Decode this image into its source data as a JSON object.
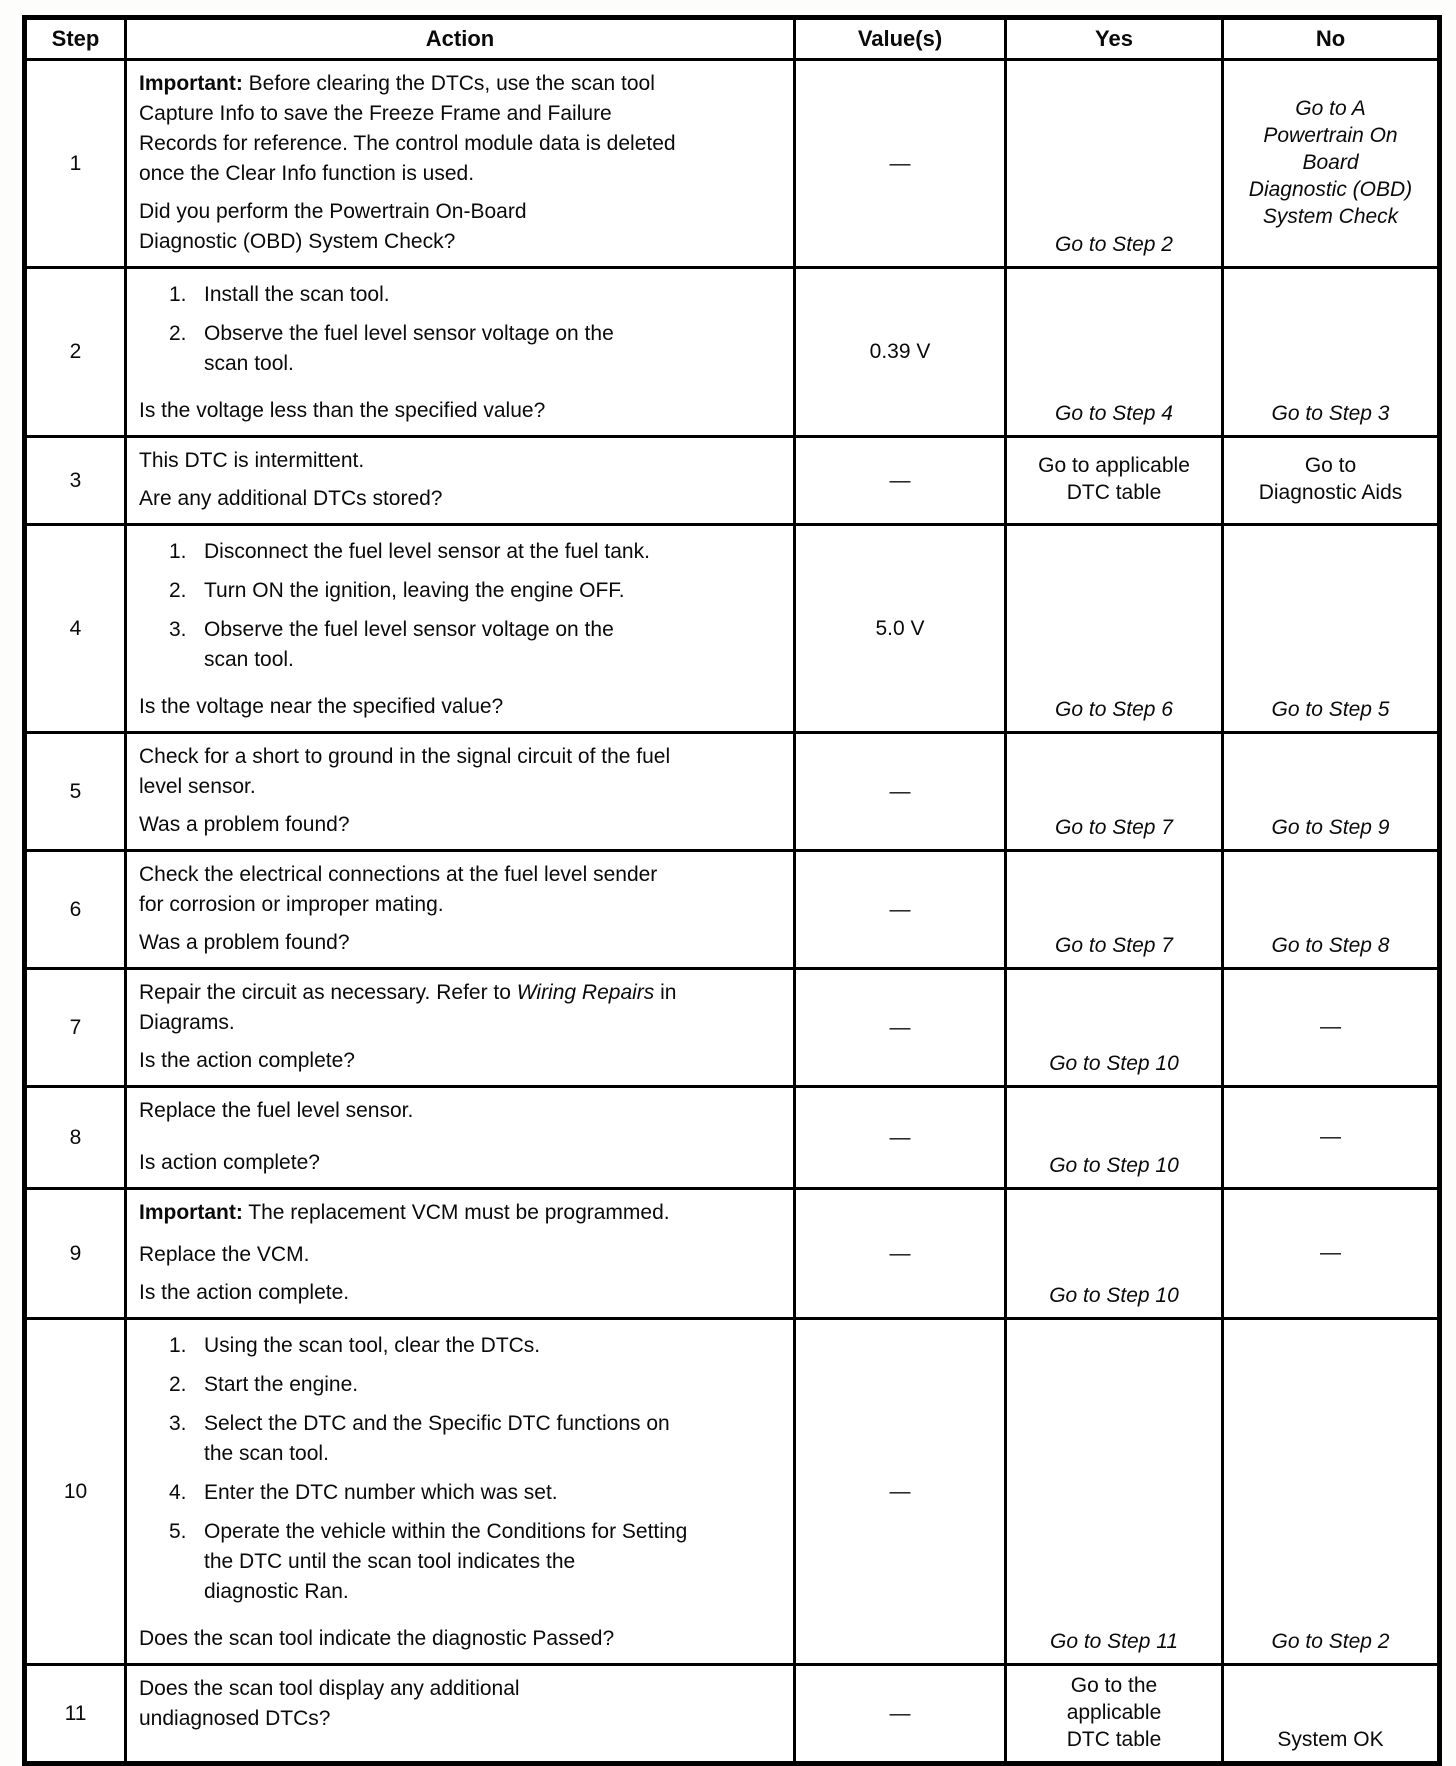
{
  "table": {
    "columns": [
      {
        "key": "step",
        "label": "Step"
      },
      {
        "key": "action",
        "label": "Action"
      },
      {
        "key": "value",
        "label": "Value(s)"
      },
      {
        "key": "yes",
        "label": "Yes"
      },
      {
        "key": "no",
        "label": "No"
      }
    ],
    "rows": [
      {
        "step": "1",
        "action": [
          {
            "kind": "para",
            "runs": [
              {
                "text": "Important:",
                "bold": true
              },
              {
                "text": " Before clearing the DTCs, use the scan tool\nCapture Info to save the Freeze Frame and Failure\nRecords for reference. The control module data is deleted\nonce the Clear Info function is used."
              }
            ]
          },
          {
            "kind": "question",
            "runs": [
              {
                "text": "Did you perform the Powertrain On-Board\nDiagnostic (OBD) System Check?"
              }
            ]
          }
        ],
        "value": "—",
        "yes": {
          "text": "Go to Step 2",
          "italic": true,
          "valign": "bottom"
        },
        "no": {
          "text": "Go to A\nPowertrain On\nBoard\nDiagnostic (OBD)\nSystem Check",
          "italic": true,
          "valign": "center"
        }
      },
      {
        "step": "2",
        "action": [
          {
            "kind": "list",
            "items": [
              {
                "n": "1.",
                "text": "Install the scan tool."
              },
              {
                "n": "2.",
                "text": "Observe the fuel level sensor voltage on the\nscan tool."
              }
            ]
          },
          {
            "kind": "question",
            "runs": [
              {
                "text": "Is the voltage less than the specified value?"
              }
            ]
          }
        ],
        "value": "0.39 V",
        "yes": {
          "text": "Go to Step 4",
          "italic": true,
          "valign": "bottom"
        },
        "no": {
          "text": "Go to Step 3",
          "italic": true,
          "valign": "bottom"
        }
      },
      {
        "step": "3",
        "action": [
          {
            "kind": "para",
            "runs": [
              {
                "text": "This DTC is intermittent."
              }
            ]
          },
          {
            "kind": "question",
            "runs": [
              {
                "text": "Are any additional DTCs stored?"
              }
            ]
          }
        ],
        "value": "—",
        "yes": {
          "text": "Go to applicable\nDTC table",
          "italic": false,
          "valign": "center"
        },
        "no": {
          "text": "Go to\nDiagnostic Aids",
          "italic": false,
          "valign": "center"
        }
      },
      {
        "step": "4",
        "action": [
          {
            "kind": "list",
            "items": [
              {
                "n": "1.",
                "text": "Disconnect the fuel level sensor at the fuel tank."
              },
              {
                "n": "2.",
                "text": "Turn ON the ignition, leaving the engine OFF."
              },
              {
                "n": "3.",
                "text": "Observe the fuel level sensor voltage on the\nscan tool."
              }
            ]
          },
          {
            "kind": "question",
            "runs": [
              {
                "text": "Is the voltage near the specified value?"
              }
            ]
          }
        ],
        "value": "5.0 V",
        "yes": {
          "text": "Go to Step 6",
          "italic": true,
          "valign": "bottom"
        },
        "no": {
          "text": "Go to Step 5",
          "italic": true,
          "valign": "bottom"
        }
      },
      {
        "step": "5",
        "action": [
          {
            "kind": "para",
            "runs": [
              {
                "text": "Check for a short to ground in the signal circuit of the fuel\nlevel sensor."
              }
            ]
          },
          {
            "kind": "question",
            "runs": [
              {
                "text": "Was a problem found?"
              }
            ]
          }
        ],
        "value": "—",
        "yes": {
          "text": "Go to Step 7",
          "italic": true,
          "valign": "bottom"
        },
        "no": {
          "text": "Go to Step 9",
          "italic": true,
          "valign": "bottom"
        }
      },
      {
        "step": "6",
        "action": [
          {
            "kind": "para",
            "runs": [
              {
                "text": "Check the electrical connections at the fuel level sender\nfor corrosion or improper mating."
              }
            ]
          },
          {
            "kind": "question",
            "runs": [
              {
                "text": "Was a problem found?"
              }
            ]
          }
        ],
        "value": "—",
        "yes": {
          "text": "Go to Step 7",
          "italic": true,
          "valign": "bottom"
        },
        "no": {
          "text": "Go to Step 8",
          "italic": true,
          "valign": "bottom"
        }
      },
      {
        "step": "7",
        "action": [
          {
            "kind": "para",
            "runs": [
              {
                "text": "Repair the circuit as necessary. Refer to "
              },
              {
                "text": "Wiring Repairs",
                "italic": true
              },
              {
                "text": " in\nDiagrams."
              }
            ]
          },
          {
            "kind": "question",
            "runs": [
              {
                "text": "Is the action complete?"
              }
            ]
          }
        ],
        "value": "—",
        "yes": {
          "text": "Go to Step 10",
          "italic": true,
          "valign": "bottom"
        },
        "no": {
          "text": "—",
          "italic": false,
          "valign": "center"
        }
      },
      {
        "step": "8",
        "action": [
          {
            "kind": "para",
            "runs": [
              {
                "text": "Replace the fuel level sensor."
              }
            ]
          },
          {
            "kind": "question",
            "runs": [
              {
                "text": "Is action complete?"
              }
            ]
          }
        ],
        "value": "—",
        "yes": {
          "text": "Go to Step 10",
          "italic": true,
          "valign": "bottom"
        },
        "no": {
          "text": "—",
          "italic": false,
          "valign": "center"
        }
      },
      {
        "step": "9",
        "action": [
          {
            "kind": "para",
            "runs": [
              {
                "text": "Important:",
                "bold": true
              },
              {
                "text": " The replacement VCM must be programmed."
              }
            ]
          },
          {
            "kind": "para",
            "runs": [
              {
                "text": "Replace the VCM."
              }
            ]
          },
          {
            "kind": "question",
            "runs": [
              {
                "text": "Is the action complete."
              }
            ]
          }
        ],
        "value": "—",
        "yes": {
          "text": "Go to Step 10",
          "italic": true,
          "valign": "bottom"
        },
        "no": {
          "text": "—",
          "italic": false,
          "valign": "center"
        }
      },
      {
        "step": "10",
        "action": [
          {
            "kind": "list",
            "items": [
              {
                "n": "1.",
                "text": "Using the scan tool, clear the DTCs."
              },
              {
                "n": "2.",
                "text": "Start the engine."
              },
              {
                "n": "3.",
                "text": "Select the DTC and the Specific DTC functions on\nthe scan tool."
              },
              {
                "n": "4.",
                "text": "Enter the DTC number which was set."
              },
              {
                "n": "5.",
                "text": "Operate the vehicle within the Conditions for Setting\nthe DTC until the scan tool indicates the\ndiagnostic Ran."
              }
            ]
          },
          {
            "kind": "question",
            "runs": [
              {
                "text": "Does the scan tool indicate the diagnostic Passed?"
              }
            ]
          }
        ],
        "value": "—",
        "yes": {
          "text": "Go to Step 11",
          "italic": true,
          "valign": "bottom"
        },
        "no": {
          "text": "Go to Step 2",
          "italic": true,
          "valign": "bottom"
        }
      },
      {
        "step": "11",
        "action": [
          {
            "kind": "para",
            "runs": [
              {
                "text": "Does the scan tool display any additional\nundiagnosed DTCs?"
              }
            ]
          }
        ],
        "value": "—",
        "yes": {
          "text": "Go to the\napplicable\nDTC table",
          "italic": false,
          "valign": "center"
        },
        "no": {
          "text": "System OK",
          "italic": false,
          "valign": "bottom"
        }
      }
    ]
  }
}
